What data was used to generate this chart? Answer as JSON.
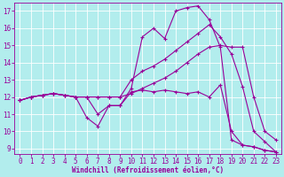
{
  "xlabel": "Windchill (Refroidissement éolien,°C)",
  "bg_color": "#b2eded",
  "grid_color": "#ffffff",
  "line_color": "#990099",
  "xlim": [
    -0.5,
    23.5
  ],
  "ylim": [
    8.7,
    17.5
  ],
  "xticks": [
    0,
    1,
    2,
    3,
    4,
    5,
    6,
    7,
    8,
    9,
    10,
    11,
    12,
    13,
    14,
    15,
    16,
    17,
    18,
    19,
    20,
    21,
    22,
    23
  ],
  "yticks": [
    9,
    10,
    11,
    12,
    13,
    14,
    15,
    16,
    17
  ],
  "line1_x": [
    0,
    1,
    2,
    3,
    4,
    5,
    6,
    7,
    8,
    9,
    10,
    11,
    12,
    13,
    14,
    15,
    16,
    17,
    18,
    19,
    20,
    21,
    22,
    23
  ],
  "line1_y": [
    11.8,
    12.0,
    12.1,
    12.2,
    12.1,
    12.0,
    10.8,
    10.3,
    11.5,
    11.5,
    12.3,
    12.4,
    12.3,
    12.4,
    12.3,
    12.2,
    12.3,
    12.0,
    12.7,
    10.0,
    9.2,
    9.1,
    8.9,
    8.8
  ],
  "line2_x": [
    0,
    1,
    2,
    3,
    4,
    5,
    6,
    7,
    8,
    9,
    10,
    11,
    12,
    13,
    14,
    15,
    16,
    17,
    18,
    19,
    20,
    21,
    22,
    23
  ],
  "line2_y": [
    11.8,
    12.0,
    12.1,
    12.2,
    12.1,
    12.0,
    12.0,
    12.0,
    12.0,
    12.0,
    12.2,
    12.5,
    12.8,
    13.1,
    13.5,
    14.0,
    14.5,
    14.9,
    15.0,
    14.9,
    14.9,
    12.0,
    10.0,
    9.5
  ],
  "line3_x": [
    0,
    1,
    2,
    3,
    4,
    5,
    6,
    7,
    8,
    9,
    10,
    11,
    12,
    13,
    14,
    15,
    16,
    17,
    18,
    19,
    20,
    21,
    22,
    23
  ],
  "line3_y": [
    11.8,
    12.0,
    12.1,
    12.2,
    12.1,
    12.0,
    12.0,
    11.0,
    11.5,
    11.5,
    12.5,
    15.5,
    16.0,
    15.4,
    17.0,
    17.2,
    17.3,
    16.5,
    14.9,
    9.5,
    9.2,
    9.1,
    8.9,
    8.8
  ],
  "line4_x": [
    0,
    1,
    2,
    3,
    4,
    5,
    6,
    7,
    8,
    9,
    10,
    11,
    12,
    13,
    14,
    15,
    16,
    17,
    18,
    19,
    20,
    21,
    22,
    23
  ],
  "line4_y": [
    11.8,
    12.0,
    12.1,
    12.2,
    12.1,
    12.0,
    12.0,
    12.0,
    12.0,
    12.0,
    13.0,
    13.5,
    13.8,
    14.2,
    14.7,
    15.2,
    15.7,
    16.2,
    15.5,
    14.5,
    12.6,
    10.0,
    9.4,
    8.8
  ],
  "marker": "+",
  "markersize": 3,
  "linewidth": 0.8,
  "tick_fontsize": 5.5,
  "xlabel_fontsize": 5.5
}
